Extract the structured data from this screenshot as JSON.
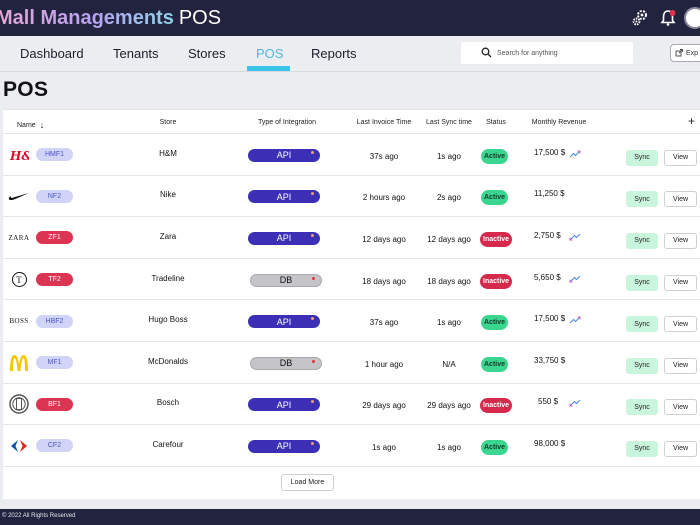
{
  "app": {
    "title": "Mall Managements",
    "title_suffix": "POS"
  },
  "nav": {
    "tabs": [
      "Dashboard",
      "Tenants",
      "Stores",
      "POS",
      "Reports"
    ],
    "active": "POS"
  },
  "search": {
    "placeholder": "Search for anything"
  },
  "export": {
    "label": "Exp"
  },
  "page": {
    "title": "POS"
  },
  "table": {
    "columns": [
      "Name",
      "Store",
      "Type of Integration",
      "Last Invoice Time",
      "Last Sync time",
      "Status",
      "Monthly Revenue"
    ],
    "add_symbol": "+",
    "sync_label": "Sync",
    "view_label": "View",
    "rows": [
      {
        "logo": "hm-logo",
        "code": "HMF1",
        "code_style": "blue",
        "store": "H&M",
        "integration": "API",
        "invoice": "37s ago",
        "sync": "1s ago",
        "status": "Active",
        "revenue": "17,500 $",
        "trend": "up"
      },
      {
        "logo": "nike-logo",
        "code": "NF2",
        "code_style": "blue",
        "store": "Nike",
        "integration": "API",
        "invoice": "2 hours ago",
        "sync": "2s ago",
        "status": "Active",
        "revenue": "11,250 $",
        "trend": "none"
      },
      {
        "logo": "zara-logo",
        "code": "ZF1",
        "code_style": "red",
        "store": "Zara",
        "integration": "API",
        "invoice": "12 days ago",
        "sync": "12 days ago",
        "status": "Inactive",
        "revenue": "2,750 $",
        "trend": "down"
      },
      {
        "logo": "tradeline-logo",
        "code": "TF2",
        "code_style": "red",
        "store": "Tradeline",
        "integration": "DB",
        "invoice": "18 days ago",
        "sync": "18 days ago",
        "status": "Inactive",
        "revenue": "5,650 $",
        "trend": "down"
      },
      {
        "logo": "boss-logo",
        "code": "HBF2",
        "code_style": "blue",
        "store": "Hugo Boss",
        "integration": "API",
        "invoice": "37s ago",
        "sync": "1s ago",
        "status": "Active",
        "revenue": "17,500 $",
        "trend": "up"
      },
      {
        "logo": "mcdonalds-logo",
        "code": "MF1",
        "code_style": "blue",
        "store": "McDonalds",
        "integration": "DB",
        "invoice": "1 hour ago",
        "sync": "N/A",
        "status": "Active",
        "revenue": "33,750 $",
        "trend": "none"
      },
      {
        "logo": "bosch-logo",
        "code": "BF1",
        "code_style": "red",
        "store": "Bosch",
        "integration": "API",
        "invoice": "29 days ago",
        "sync": "29 days ago",
        "status": "Inactive",
        "revenue": "550 $",
        "trend": "down"
      },
      {
        "logo": "carrefour-logo",
        "code": "CF2",
        "code_style": "blue",
        "store": "Carefour",
        "integration": "API",
        "invoice": "1s ago",
        "sync": "1s ago",
        "status": "Active",
        "revenue": "98,000 $",
        "trend": "none"
      }
    ],
    "load_more": "Load More"
  },
  "logo_text": {
    "zara": "ZARA",
    "boss": "BOSS",
    "tradeline": "T"
  },
  "colors": {
    "api": "#3a2fb5",
    "active": "#3ad58e",
    "inactive": "#d52a4c",
    "accent": "#3cc4e8",
    "topbar": "#22233e"
  },
  "footer": {
    "text": "© 2022 All Rights Reserved"
  }
}
